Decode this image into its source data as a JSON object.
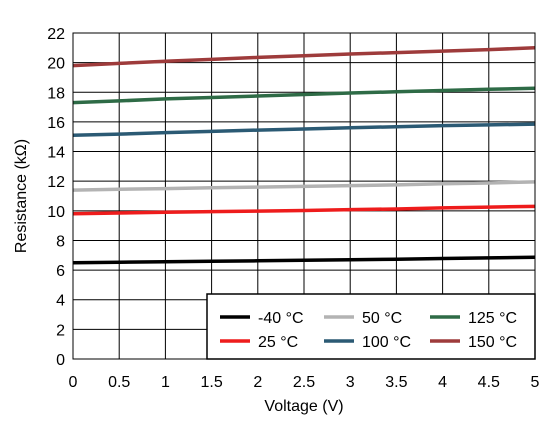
{
  "chart_data": {
    "type": "line",
    "title": "",
    "xlabel": "Voltage (V)",
    "ylabel": "Resistance (kΩ)",
    "xlim": [
      0,
      5
    ],
    "ylim": [
      0,
      22
    ],
    "xticks": [
      0,
      0.5,
      1,
      1.5,
      2,
      2.5,
      3,
      3.5,
      4,
      4.5,
      5
    ],
    "yticks": [
      0,
      2,
      4,
      6,
      8,
      10,
      12,
      14,
      16,
      18,
      20,
      22
    ],
    "grid": true,
    "legend_position": "bottom-right",
    "x": [
      0,
      0.5,
      1,
      1.5,
      2,
      2.5,
      3,
      3.5,
      4,
      4.5,
      5
    ],
    "series": [
      {
        "name": "-40 °C",
        "color": "#000000",
        "values": [
          6.5,
          6.53,
          6.56,
          6.6,
          6.63,
          6.66,
          6.7,
          6.73,
          6.78,
          6.82,
          6.87
        ]
      },
      {
        "name": "25 °C",
        "color": "#ee1c1c",
        "values": [
          9.8,
          9.85,
          9.9,
          9.95,
          9.98,
          10.02,
          10.08,
          10.12,
          10.2,
          10.25,
          10.3
        ]
      },
      {
        "name": "50 °C",
        "color": "#b3b3b3",
        "values": [
          11.4,
          11.45,
          11.5,
          11.55,
          11.6,
          11.65,
          11.7,
          11.75,
          11.82,
          11.88,
          11.95
        ]
      },
      {
        "name": "100 °C",
        "color": "#2b5a74",
        "values": [
          15.1,
          15.18,
          15.28,
          15.36,
          15.45,
          15.52,
          15.6,
          15.68,
          15.75,
          15.8,
          15.85
        ]
      },
      {
        "name": "125 °C",
        "color": "#2e6b46",
        "values": [
          17.3,
          17.42,
          17.55,
          17.65,
          17.75,
          17.85,
          17.95,
          18.03,
          18.12,
          18.2,
          18.27
        ]
      },
      {
        "name": "150 °C",
        "color": "#9e3b3b",
        "values": [
          19.8,
          19.95,
          20.1,
          20.22,
          20.35,
          20.47,
          20.58,
          20.68,
          20.78,
          20.88,
          21.0
        ]
      }
    ],
    "legend_order": [
      "-40 °C",
      "50 °C",
      "125 °C",
      "25 °C",
      "100 °C",
      "150 °C"
    ]
  }
}
